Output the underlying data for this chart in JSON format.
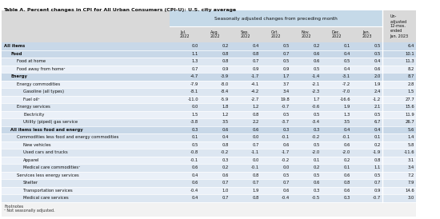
{
  "title": "Table A. Percent changes in CPI for All Urban Consumers (CPI-U): U.S. city average",
  "header_main": "Seasonally adjusted changes from preceding month",
  "header_last": "Un-\nadjusted\n12-mos.\nended\nJan. 2023",
  "col_headers": [
    "Jul.\n2022",
    "Aug.\n2022",
    "Sep.\n2022",
    "Oct.\n2022",
    "Nov.\n2022",
    "Dec.\n2022",
    "Jan.\n2023"
  ],
  "rows": [
    {
      "label": "All items",
      "indent": 0,
      "bold": true,
      "values": [
        "0.0",
        "0.2",
        "0.4",
        "0.5",
        "0.2",
        "0.1",
        "0.5",
        "6.4"
      ]
    },
    {
      "label": "Food",
      "indent": 1,
      "bold": true,
      "values": [
        "1.1",
        "0.8",
        "0.8",
        "0.7",
        "0.6",
        "0.4",
        "0.5",
        "10.1"
      ]
    },
    {
      "label": "Food at home",
      "indent": 2,
      "bold": false,
      "values": [
        "1.3",
        "0.8",
        "0.7",
        "0.5",
        "0.6",
        "0.5",
        "0.4",
        "11.3"
      ]
    },
    {
      "label": "Food away from home¹",
      "indent": 2,
      "bold": false,
      "values": [
        "0.7",
        "0.9",
        "0.9",
        "0.9",
        "0.5",
        "0.4",
        "0.6",
        "8.2"
      ]
    },
    {
      "label": "Energy",
      "indent": 1,
      "bold": true,
      "values": [
        "-4.7",
        "-3.9",
        "-1.7",
        "1.7",
        "-1.4",
        "-3.1",
        "2.0",
        "8.7"
      ]
    },
    {
      "label": "Energy commodities",
      "indent": 2,
      "bold": false,
      "values": [
        "-7.9",
        "-8.0",
        "-4.1",
        "3.7",
        "-2.1",
        "-7.2",
        "1.9",
        "2.8"
      ]
    },
    {
      "label": "Gasoline (all types)",
      "indent": 3,
      "bold": false,
      "values": [
        "-8.1",
        "-8.4",
        "-4.2",
        "3.4",
        "-2.3",
        "-7.0",
        "2.4",
        "1.5"
      ]
    },
    {
      "label": "Fuel oil¹",
      "indent": 3,
      "bold": false,
      "values": [
        "-11.0",
        "-5.9",
        "-2.7",
        "19.8",
        "1.7",
        "-16.6",
        "-1.2",
        "27.7"
      ]
    },
    {
      "label": "Energy services",
      "indent": 2,
      "bold": false,
      "values": [
        "0.0",
        "1.8",
        "1.2",
        "-0.7",
        "-0.6",
        "1.9",
        "2.1",
        "15.6"
      ]
    },
    {
      "label": "Electricity",
      "indent": 3,
      "bold": false,
      "values": [
        "1.5",
        "1.2",
        "0.8",
        "0.5",
        "0.5",
        "1.3",
        "0.5",
        "11.9"
      ]
    },
    {
      "label": "Utility (piped) gas service",
      "indent": 3,
      "bold": false,
      "values": [
        "-3.8",
        "3.5",
        "2.2",
        "-3.7",
        "-3.4",
        "3.5",
        "6.7",
        "26.7"
      ]
    },
    {
      "label": "All items less food and energy",
      "indent": 1,
      "bold": true,
      "values": [
        "0.3",
        "0.6",
        "0.6",
        "0.3",
        "0.3",
        "0.4",
        "0.4",
        "5.6"
      ]
    },
    {
      "label": "Commodities less food and energy commodities",
      "indent": 2,
      "bold": false,
      "values": [
        "0.1",
        "0.4",
        "0.0",
        "-0.1",
        "-0.2",
        "-0.1",
        "0.1",
        "1.4"
      ]
    },
    {
      "label": "New vehicles",
      "indent": 3,
      "bold": false,
      "values": [
        "0.5",
        "0.8",
        "0.7",
        "0.6",
        "0.5",
        "0.6",
        "0.2",
        "5.8"
      ]
    },
    {
      "label": "Used cars and trucks",
      "indent": 3,
      "bold": false,
      "values": [
        "-0.8",
        "-0.2",
        "-1.1",
        "-1.7",
        "-2.0",
        "-2.0",
        "-1.9",
        "-11.6"
      ]
    },
    {
      "label": "Apparel",
      "indent": 3,
      "bold": false,
      "values": [
        "-0.1",
        "0.3",
        "0.0",
        "-0.2",
        "0.1",
        "0.2",
        "0.8",
        "3.1"
      ]
    },
    {
      "label": "Medical care commodities¹",
      "indent": 3,
      "bold": false,
      "values": [
        "0.6",
        "0.2",
        "-0.1",
        "0.0",
        "0.2",
        "0.1",
        "1.1",
        "3.4"
      ]
    },
    {
      "label": "Services less energy services",
      "indent": 2,
      "bold": false,
      "values": [
        "0.4",
        "0.6",
        "0.8",
        "0.5",
        "0.5",
        "0.6",
        "0.5",
        "7.2"
      ]
    },
    {
      "label": "Shelter",
      "indent": 3,
      "bold": false,
      "values": [
        "0.6",
        "0.7",
        "0.7",
        "0.7",
        "0.6",
        "0.8",
        "0.7",
        "7.9"
      ]
    },
    {
      "label": "Transportation services",
      "indent": 3,
      "bold": false,
      "values": [
        "-0.4",
        "1.0",
        "1.9",
        "0.6",
        "0.3",
        "0.6",
        "0.9",
        "14.6"
      ]
    },
    {
      "label": "Medical care services",
      "indent": 3,
      "bold": false,
      "values": [
        "0.4",
        "0.7",
        "0.8",
        "-0.4",
        "-0.5",
        "0.3",
        "-0.7",
        "3.0"
      ]
    }
  ],
  "footnotes_line1": "Footnotes",
  "footnotes_line2": "¹ Not seasonally adjusted.",
  "row_colors_light": "#dce6f1",
  "row_colors_dark": "#c5d9e8",
  "header_color": "#c5d9e8",
  "subheader_color": "#dce6f1",
  "bg_gray": "#e8e8e8",
  "figsize": [
    5.5,
    2.74
  ],
  "dpi": 100
}
